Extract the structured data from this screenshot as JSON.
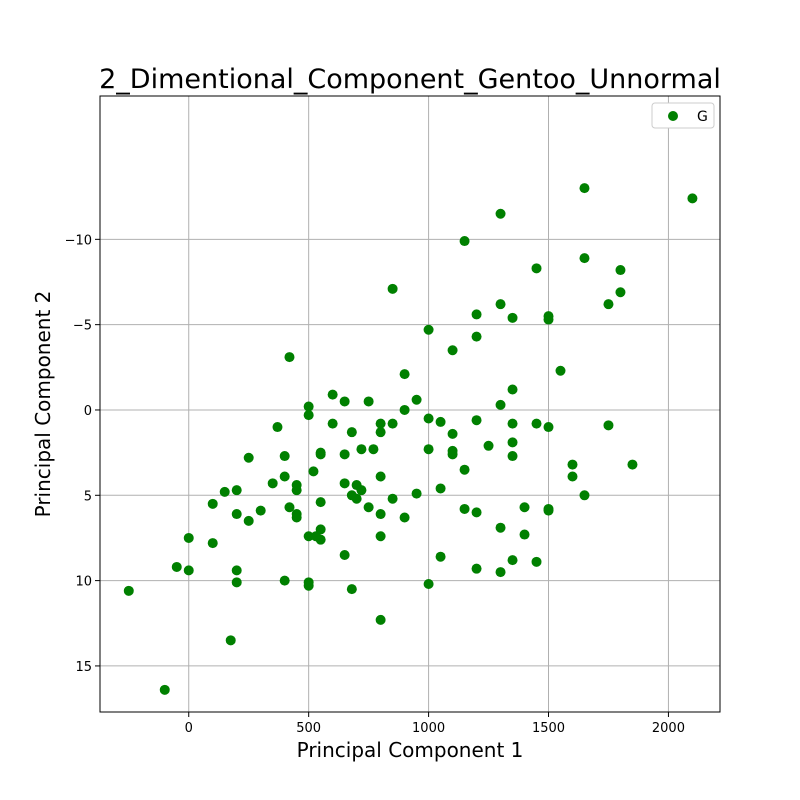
{
  "chart_data": {
    "type": "scatter",
    "title": "2_Dimentional_Component_Gentoo_Unnormal",
    "xlabel": "Principal Component 1",
    "ylabel": "Principal Component 2",
    "xlim": [
      -370,
      2215
    ],
    "ylim": [
      17.7,
      -18.4
    ],
    "y_inverted": true,
    "grid": true,
    "legend": {
      "placement": "top-right",
      "entries": [
        "G"
      ]
    },
    "colors": {
      "points": "#008000",
      "grid": "#b0b0b0",
      "frame": "#000000"
    },
    "x_ticks": [
      {
        "value": 0,
        "label": "0"
      },
      {
        "value": 500,
        "label": "500"
      },
      {
        "value": 1000,
        "label": "1000"
      },
      {
        "value": 1500,
        "label": "1500"
      },
      {
        "value": 2000,
        "label": "2000"
      }
    ],
    "y_ticks": [
      {
        "value": -10,
        "label": "−10"
      },
      {
        "value": -5,
        "label": "−5"
      },
      {
        "value": 0,
        "label": "0"
      },
      {
        "value": 5,
        "label": "5"
      },
      {
        "value": 10,
        "label": "10"
      },
      {
        "value": 15,
        "label": "15"
      }
    ],
    "series": [
      {
        "name": "G",
        "points": [
          [
            1650,
            -13
          ],
          [
            2100,
            -12.4
          ],
          [
            1300,
            -11.5
          ],
          [
            1150,
            -9.9
          ],
          [
            1650,
            -8.9
          ],
          [
            1450,
            -8.3
          ],
          [
            1800,
            -8.2
          ],
          [
            850,
            -7.1
          ],
          [
            1800,
            -6.9
          ],
          [
            1300,
            -6.2
          ],
          [
            1750,
            -6.2
          ],
          [
            1200,
            -5.6
          ],
          [
            1350,
            -5.4
          ],
          [
            1500,
            -5.5
          ],
          [
            1500,
            -5.3
          ],
          [
            1000,
            -4.7
          ],
          [
            1200,
            -4.3
          ],
          [
            1100,
            -3.5
          ],
          [
            420,
            -3.1
          ],
          [
            1550,
            -2.3
          ],
          [
            900,
            -2.1
          ],
          [
            1350,
            -1.2
          ],
          [
            600,
            -0.9
          ],
          [
            650,
            -0.5
          ],
          [
            750,
            -0.5
          ],
          [
            950,
            -0.6
          ],
          [
            500,
            -0.2
          ],
          [
            1300,
            -0.3
          ],
          [
            900,
            0
          ],
          [
            500,
            0.3
          ],
          [
            1000,
            0.5
          ],
          [
            1050,
            0.7
          ],
          [
            1200,
            0.6
          ],
          [
            600,
            0.8
          ],
          [
            800,
            0.8
          ],
          [
            850,
            0.8
          ],
          [
            1350,
            0.8
          ],
          [
            1450,
            0.8
          ],
          [
            1500,
            1
          ],
          [
            1750,
            0.9
          ],
          [
            370,
            1
          ],
          [
            680,
            1.3
          ],
          [
            800,
            1.3
          ],
          [
            1100,
            1.4
          ],
          [
            1350,
            1.9
          ],
          [
            1250,
            2.1
          ],
          [
            720,
            2.3
          ],
          [
            770,
            2.3
          ],
          [
            1000,
            2.3
          ],
          [
            1100,
            2.4
          ],
          [
            1100,
            2.6
          ],
          [
            550,
            2.5
          ],
          [
            550,
            2.6
          ],
          [
            650,
            2.6
          ],
          [
            400,
            2.7
          ],
          [
            1350,
            2.7
          ],
          [
            250,
            2.8
          ],
          [
            1600,
            3.2
          ],
          [
            1850,
            3.2
          ],
          [
            1150,
            3.5
          ],
          [
            520,
            3.6
          ],
          [
            400,
            3.9
          ],
          [
            800,
            3.9
          ],
          [
            1600,
            3.9
          ],
          [
            350,
            4.3
          ],
          [
            650,
            4.3
          ],
          [
            700,
            4.4
          ],
          [
            450,
            4.4
          ],
          [
            450,
            4.7
          ],
          [
            720,
            4.7
          ],
          [
            1050,
            4.6
          ],
          [
            150,
            4.8
          ],
          [
            200,
            4.7
          ],
          [
            680,
            5
          ],
          [
            950,
            4.9
          ],
          [
            1650,
            5
          ],
          [
            700,
            5.2
          ],
          [
            850,
            5.2
          ],
          [
            550,
            5.4
          ],
          [
            100,
            5.5
          ],
          [
            420,
            5.7
          ],
          [
            750,
            5.7
          ],
          [
            1400,
            5.7
          ],
          [
            1150,
            5.8
          ],
          [
            1500,
            5.8
          ],
          [
            1500,
            5.9
          ],
          [
            300,
            5.9
          ],
          [
            200,
            6.1
          ],
          [
            450,
            6.1
          ],
          [
            450,
            6.3
          ],
          [
            800,
            6.1
          ],
          [
            900,
            6.3
          ],
          [
            1200,
            6
          ],
          [
            250,
            6.5
          ],
          [
            550,
            7
          ],
          [
            1300,
            6.9
          ],
          [
            1400,
            7.3
          ],
          [
            500,
            7.4
          ],
          [
            530,
            7.4
          ],
          [
            800,
            7.4
          ],
          [
            0,
            7.5
          ],
          [
            550,
            7.6
          ],
          [
            100,
            7.8
          ],
          [
            650,
            8.5
          ],
          [
            1050,
            8.6
          ],
          [
            1350,
            8.8
          ],
          [
            1450,
            8.9
          ],
          [
            -50,
            9.2
          ],
          [
            1200,
            9.3
          ],
          [
            200,
            9.4
          ],
          [
            0,
            9.4
          ],
          [
            1300,
            9.5
          ],
          [
            400,
            10
          ],
          [
            200,
            10.1
          ],
          [
            500,
            10.1
          ],
          [
            500,
            10.3
          ],
          [
            1000,
            10.2
          ],
          [
            680,
            10.5
          ],
          [
            -250,
            10.6
          ],
          [
            800,
            12.3
          ],
          [
            175,
            13.5
          ],
          [
            -100,
            16.4
          ]
        ]
      }
    ]
  }
}
